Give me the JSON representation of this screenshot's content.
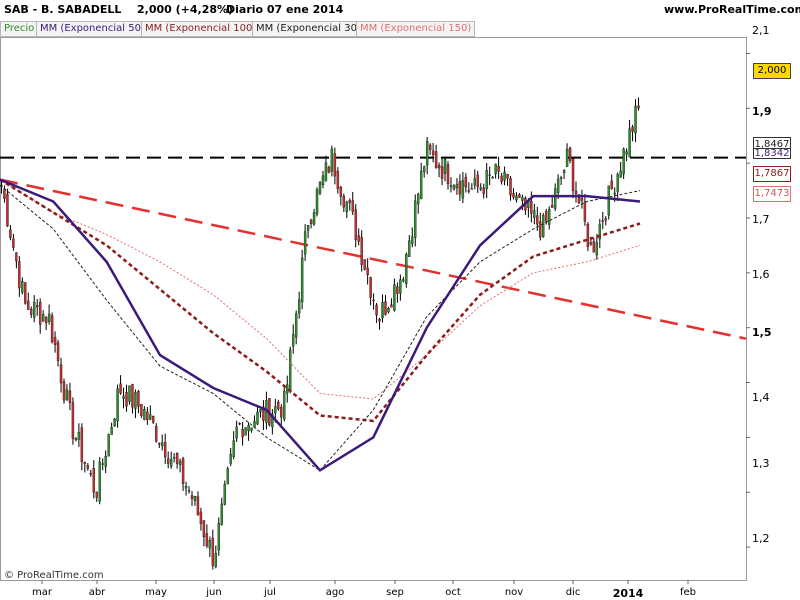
{
  "header": {
    "ticker": "SAB - B. SABADELL",
    "price": "2,000 (+4,28%)",
    "period": "Diario  07 ene 2014",
    "site": "www.ProRealTime.com"
  },
  "legend": [
    {
      "label": "Precio",
      "color": "#2e8b2e"
    },
    {
      "label": "MM (Exponencial 50)",
      "color": "#3b1a7a"
    },
    {
      "label": "MM (Exponencial 100)",
      "color": "#8b1c1c"
    },
    {
      "label": "MM (Exponencial 30)",
      "color": "#222222"
    },
    {
      "label": "MM (Exponencial 150)",
      "color": "#e07070"
    }
  ],
  "footer": "© ProRealTime.com",
  "price_labels": {
    "last": "2,000",
    "ema30": "1,8467",
    "ema50": "1,8342",
    "ema100": "1,7867",
    "ema150": "1,7473"
  },
  "chart_data": {
    "type": "candlestick",
    "y_ticks": [
      "2,1",
      "2",
      "1,9",
      "1,8",
      "1,7",
      "1,6",
      "1,5",
      "1,4",
      "1,3",
      "1,2"
    ],
    "ylim": [
      1.14,
      2.13
    ],
    "x_ticks": [
      "mar",
      "abr",
      "may",
      "jun",
      "jul",
      "ago",
      "sep",
      "oct",
      "nov",
      "dic",
      "2014",
      "feb"
    ],
    "last_close": 2.0,
    "change_pct": 4.28,
    "horizontal_line": {
      "value": 1.91,
      "style": "dashed",
      "color": "#000000"
    },
    "trendline": {
      "start": {
        "date": "feb",
        "value": 1.87
      },
      "end": {
        "date": "feb",
        "value": 1.58
      },
      "style": "dashed",
      "color": "#e53030"
    },
    "price_path": [
      [
        "feb",
        1.86
      ],
      [
        "mar",
        1.64
      ],
      [
        "mar",
        1.62
      ],
      [
        "abr",
        1.42
      ],
      [
        "abr",
        1.3
      ],
      [
        "may",
        1.49
      ],
      [
        "may",
        1.45
      ],
      [
        "jun",
        1.38
      ],
      [
        "jun",
        1.3
      ],
      [
        "jul",
        1.18
      ],
      [
        "jul",
        1.42
      ],
      [
        "jul",
        1.44
      ],
      [
        "ago",
        1.46
      ],
      [
        "ago",
        1.8
      ],
      [
        "ago",
        1.91
      ],
      [
        "sep",
        1.78
      ],
      [
        "sep",
        1.62
      ],
      [
        "sep",
        1.7
      ],
      [
        "oct",
        1.92
      ],
      [
        "oct",
        1.88
      ],
      [
        "nov",
        1.85
      ],
      [
        "nov",
        1.88
      ],
      [
        "nov",
        1.82
      ],
      [
        "dic",
        1.78
      ],
      [
        "dic",
        1.91
      ],
      [
        "dic",
        1.74
      ],
      [
        "2014",
        1.87
      ],
      [
        "2014",
        2.0
      ]
    ],
    "series": [
      {
        "name": "MM (Exponencial 30)",
        "color": "#222222",
        "style": "dashed-thin"
      },
      {
        "name": "MM (Exponencial 50)",
        "color": "#3b1a7a",
        "style": "solid-thick"
      },
      {
        "name": "MM (Exponencial 100)",
        "color": "#8b1c1c",
        "style": "dashed-thick"
      },
      {
        "name": "MM (Exponencial 150)",
        "color": "#e07070",
        "style": "dashed-thin"
      }
    ],
    "ema_paths": {
      "ema30": [
        1.86,
        1.78,
        1.65,
        1.53,
        1.48,
        1.4,
        1.34,
        1.45,
        1.62,
        1.72,
        1.78,
        1.83,
        1.85
      ],
      "ema50": [
        1.87,
        1.83,
        1.72,
        1.55,
        1.49,
        1.45,
        1.34,
        1.4,
        1.6,
        1.75,
        1.84,
        1.84,
        1.83
      ],
      "ema100": [
        1.87,
        1.81,
        1.75,
        1.67,
        1.59,
        1.52,
        1.44,
        1.43,
        1.55,
        1.66,
        1.73,
        1.76,
        1.79
      ],
      "ema150": [
        1.87,
        1.81,
        1.77,
        1.72,
        1.66,
        1.58,
        1.48,
        1.47,
        1.55,
        1.64,
        1.7,
        1.72,
        1.75
      ]
    }
  }
}
